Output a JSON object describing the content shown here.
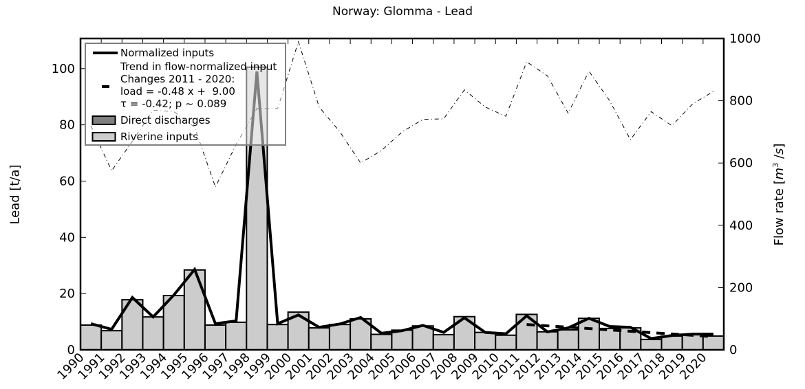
{
  "chart_data": {
    "type": "bar",
    "title": "Norway: Glomma - Lead",
    "xlabel": "",
    "ylabel": "Lead [t/a]",
    "y2label": "Flow rate [m³/s]",
    "ylim": [
      0,
      110.7
    ],
    "y2lim": [
      0,
      1000
    ],
    "yticks": [
      0,
      20,
      40,
      60,
      80,
      100
    ],
    "y2ticks": [
      0,
      200,
      400,
      600,
      800,
      1000
    ],
    "grid": false,
    "legend_position": "upper left",
    "categories": [
      "1990",
      "1991",
      "1992",
      "1993",
      "1994",
      "1995",
      "1996",
      "1997",
      "1998",
      "1999",
      "2000",
      "2001",
      "2002",
      "2003",
      "2004",
      "2005",
      "2006",
      "2007",
      "2008",
      "2009",
      "2010",
      "2011",
      "2012",
      "2013",
      "2014",
      "2015",
      "2016",
      "2017",
      "2018",
      "2019",
      "2020"
    ],
    "series": [
      {
        "name": "Direct discharges",
        "kind": "stacked-bar",
        "color": "#808080",
        "values": [
          0,
          0,
          0,
          0,
          0,
          0,
          0,
          0,
          0,
          0,
          0,
          0,
          0,
          0,
          0,
          0,
          0,
          0,
          0,
          0,
          0,
          0,
          0,
          0,
          0,
          0,
          0,
          0,
          0,
          0,
          0
        ]
      },
      {
        "name": "Riverine inputs",
        "kind": "stacked-bar",
        "color": "#cccccc",
        "values": [
          8.8,
          6.8,
          17.8,
          11.7,
          19.3,
          28.4,
          8.8,
          9.8,
          100.5,
          9.0,
          13.4,
          7.8,
          9.0,
          11.0,
          5.5,
          7.0,
          8.5,
          5.4,
          11.8,
          6.2,
          5.2,
          12.6,
          6.4,
          7.1,
          11.2,
          7.6,
          7.8,
          3.7,
          4.9,
          5.4,
          4.9
        ]
      },
      {
        "name": "Normalized inputs",
        "kind": "line",
        "color": "#000000",
        "values": [
          9.3,
          7.3,
          18.6,
          11.7,
          19.5,
          28.6,
          9.3,
          10.3,
          99.0,
          9.3,
          12.4,
          8.0,
          9.2,
          11.5,
          5.9,
          6.8,
          8.7,
          6.2,
          11.4,
          6.2,
          5.7,
          12.1,
          6.4,
          7.8,
          11.2,
          8.3,
          8.0,
          4.0,
          5.1,
          5.6,
          5.6
        ]
      },
      {
        "name": "Trend in flow-normalized input",
        "kind": "dashed-line",
        "color": "#000000",
        "x_range": [
          "2011",
          "2020"
        ],
        "values": [
          9.0,
          8.52,
          8.04,
          7.56,
          7.08,
          6.6,
          6.12,
          5.64,
          5.16,
          4.68
        ]
      },
      {
        "name": "Flow rate",
        "kind": "dashdot-line",
        "axis": "right",
        "color": "#000000",
        "values": [
          720,
          575,
          670,
          770,
          765,
          715,
          523,
          660,
          775,
          775,
          990,
          780,
          700,
          600,
          640,
          700,
          740,
          742,
          835,
          780,
          750,
          925,
          880,
          760,
          895,
          800,
          675,
          765,
          720,
          790,
          830
        ]
      }
    ],
    "legend": [
      {
        "label": "Normalized inputs",
        "symbol": "solid-line"
      },
      {
        "label": "Trend in flow-normalized input\nChanges 2011 - 2020:\nload = -0.48 x +  9.00\nτ = -0.42; p ~ 0.089",
        "symbol": "dash"
      },
      {
        "label": "Direct discharges",
        "symbol": "patch-dark"
      },
      {
        "label": "Riverine inputs",
        "symbol": "patch-light"
      }
    ],
    "annotations": []
  }
}
